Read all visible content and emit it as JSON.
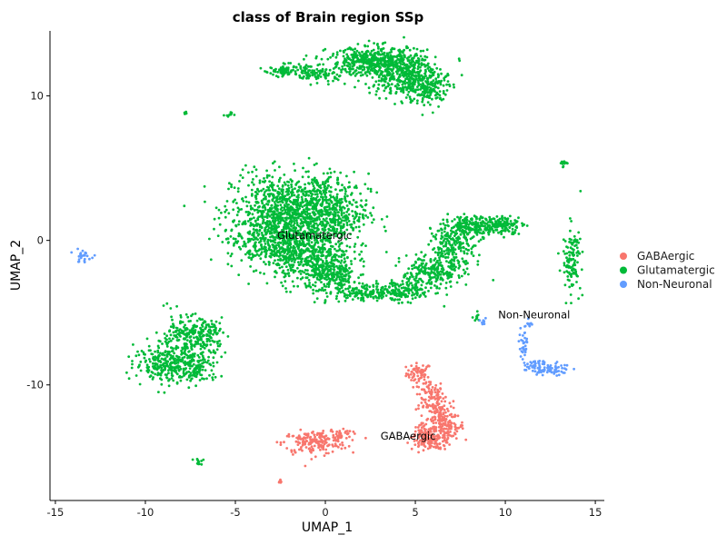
{
  "chart_data": {
    "type": "scatter",
    "title": "class of Brain region SSp",
    "xlabel": "UMAP_1",
    "ylabel": "UMAP_2",
    "xlim": [
      -15.3,
      15.5
    ],
    "ylim": [
      -18,
      14.5
    ],
    "xticks": [
      -15,
      -10,
      -5,
      0,
      5,
      10,
      15
    ],
    "yticks": [
      -10,
      0,
      10
    ],
    "xtick_labels": [
      "-15",
      "-10",
      "-5",
      "0",
      "5",
      "10",
      "15"
    ],
    "ytick_labels": [
      "-10",
      "0",
      "10"
    ],
    "grid": false,
    "legend_position": "right",
    "series": [
      {
        "name": "GABAergic",
        "color": "#F8766D",
        "clusters": [
          {
            "center": [
              5.2,
              -9.2
            ],
            "spread": [
              0.35,
              0.35
            ],
            "n": 60
          },
          {
            "center": [
              5.8,
              -10.8
            ],
            "spread": [
              0.4,
              0.6
            ],
            "n": 90
          },
          {
            "center": [
              6.4,
              -12.0
            ],
            "spread": [
              0.35,
              0.5
            ],
            "n": 90
          },
          {
            "center": [
              6.8,
              -12.9
            ],
            "spread": [
              0.45,
              0.35
            ],
            "n": 80
          },
          {
            "center": [
              5.5,
              -13.6
            ],
            "spread": [
              0.35,
              0.45
            ],
            "n": 100
          },
          {
            "center": [
              6.2,
              -13.9
            ],
            "spread": [
              0.45,
              0.3
            ],
            "n": 80
          },
          {
            "center": [
              -0.6,
              -14.0
            ],
            "spread": [
              0.9,
              0.4
            ],
            "n": 180
          },
          {
            "center": [
              0.8,
              -13.4
            ],
            "spread": [
              0.35,
              0.2
            ],
            "n": 40
          },
          {
            "center": [
              -2.5,
              -16.6
            ],
            "spread": [
              0.05,
              0.08
            ],
            "n": 6
          }
        ]
      },
      {
        "name": "Glutamatergic",
        "color": "#00BA38",
        "clusters": [
          {
            "center": [
              -2.2,
              2.2
            ],
            "spread": [
              1.5,
              1.2
            ],
            "n": 700
          },
          {
            "center": [
              0.0,
              2.0
            ],
            "spread": [
              1.2,
              1.3
            ],
            "n": 500
          },
          {
            "center": [
              -3.0,
              0.0
            ],
            "spread": [
              1.2,
              1.0
            ],
            "n": 450
          },
          {
            "center": [
              -0.7,
              -1.2
            ],
            "spread": [
              1.1,
              1.0
            ],
            "n": 400
          },
          {
            "center": [
              0.5,
              -2.6
            ],
            "spread": [
              0.7,
              0.6
            ],
            "n": 200
          },
          {
            "center": [
              2.3,
              -3.6
            ],
            "spread": [
              0.8,
              0.25
            ],
            "n": 130
          },
          {
            "center": [
              4.3,
              -3.5
            ],
            "spread": [
              0.9,
              0.35
            ],
            "n": 160
          },
          {
            "center": [
              5.9,
              -2.2
            ],
            "spread": [
              0.8,
              0.6
            ],
            "n": 200
          },
          {
            "center": [
              7.1,
              -0.4
            ],
            "spread": [
              0.6,
              0.9
            ],
            "n": 230
          },
          {
            "center": [
              8.3,
              1.0
            ],
            "spread": [
              0.7,
              0.35
            ],
            "n": 170
          },
          {
            "center": [
              9.8,
              1.1
            ],
            "spread": [
              0.6,
              0.3
            ],
            "n": 130
          },
          {
            "center": [
              -7.8,
              -6.8
            ],
            "spread": [
              0.8,
              0.8
            ],
            "n": 230
          },
          {
            "center": [
              -9.0,
              -8.5
            ],
            "spread": [
              0.8,
              0.6
            ],
            "n": 200
          },
          {
            "center": [
              -7.3,
              -8.8
            ],
            "spread": [
              0.7,
              0.6
            ],
            "n": 160
          },
          {
            "center": [
              -6.5,
              -6.6
            ],
            "spread": [
              0.4,
              0.6
            ],
            "n": 90
          },
          {
            "center": [
              2.8,
              12.4
            ],
            "spread": [
              1.3,
              0.5
            ],
            "n": 450
          },
          {
            "center": [
              4.2,
              11.5
            ],
            "spread": [
              1.0,
              0.7
            ],
            "n": 350
          },
          {
            "center": [
              5.6,
              10.6
            ],
            "spread": [
              0.6,
              0.7
            ],
            "n": 200
          },
          {
            "center": [
              -2.2,
              11.8
            ],
            "spread": [
              0.6,
              0.2
            ],
            "n": 80
          },
          {
            "center": [
              -0.5,
              11.5
            ],
            "spread": [
              0.8,
              0.3
            ],
            "n": 90
          },
          {
            "center": [
              13.7,
              -1.3
            ],
            "spread": [
              0.25,
              1.1
            ],
            "n": 120
          },
          {
            "center": [
              13.3,
              5.3
            ],
            "spread": [
              0.2,
              0.12
            ],
            "n": 15
          },
          {
            "center": [
              -7.8,
              8.8
            ],
            "spread": [
              0.06,
              0.08
            ],
            "n": 6
          },
          {
            "center": [
              -5.3,
              8.7
            ],
            "spread": [
              0.12,
              0.12
            ],
            "n": 10
          },
          {
            "center": [
              0.8,
              0.5
            ],
            "spread": [
              0.1,
              0.25
            ],
            "n": 8
          },
          {
            "center": [
              -7.0,
              -15.3
            ],
            "spread": [
              0.15,
              0.12
            ],
            "n": 12
          },
          {
            "center": [
              8.4,
              -5.3
            ],
            "spread": [
              0.12,
              0.2
            ],
            "n": 10
          }
        ]
      },
      {
        "name": "Non-Neuronal",
        "color": "#619CFF",
        "clusters": [
          {
            "center": [
              -13.5,
              -1.1
            ],
            "spread": [
              0.25,
              0.2
            ],
            "n": 25
          },
          {
            "center": [
              11.0,
              -7.2
            ],
            "spread": [
              0.15,
              0.6
            ],
            "n": 30
          },
          {
            "center": [
              11.7,
              -8.8
            ],
            "spread": [
              0.35,
              0.25
            ],
            "n": 50
          },
          {
            "center": [
              12.7,
              -8.9
            ],
            "spread": [
              0.45,
              0.2
            ],
            "n": 45
          },
          {
            "center": [
              11.3,
              -5.8
            ],
            "spread": [
              0.1,
              0.15
            ],
            "n": 10
          },
          {
            "center": [
              8.7,
              -5.6
            ],
            "spread": [
              0.1,
              0.1
            ],
            "n": 8
          }
        ]
      }
    ],
    "annotations": [
      {
        "text": "Glutamatergic",
        "x": -0.6,
        "y": 0.1
      },
      {
        "text": "Non-Neuronal",
        "x": 11.6,
        "y": -5.4
      },
      {
        "text": "GABAergic",
        "x": 4.6,
        "y": -13.8
      }
    ]
  }
}
